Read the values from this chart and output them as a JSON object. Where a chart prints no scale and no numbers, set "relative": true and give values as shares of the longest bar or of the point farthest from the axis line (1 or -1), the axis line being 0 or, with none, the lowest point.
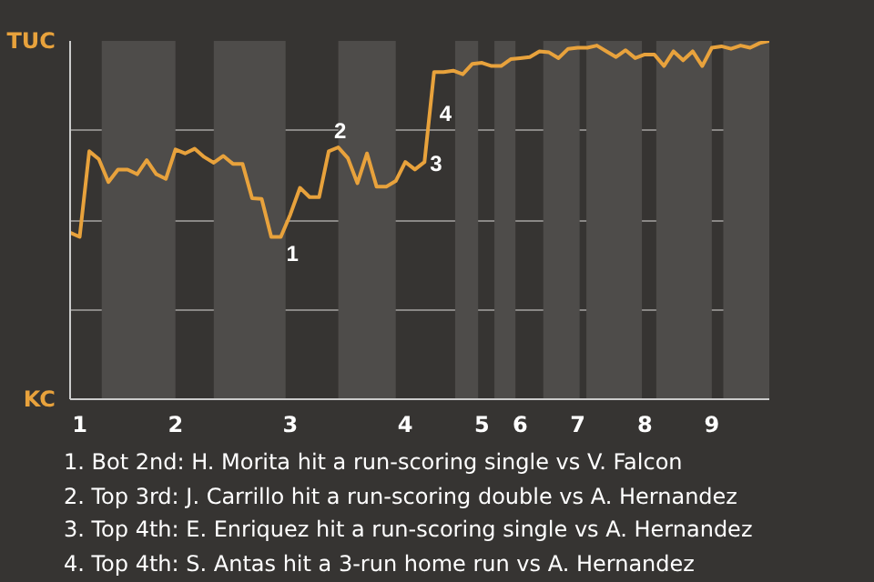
{
  "chart_data": {
    "type": "line",
    "relative": true,
    "grid": "y",
    "categories": [
      null,
      "1",
      null,
      null,
      null,
      null,
      null,
      null,
      null,
      null,
      null,
      "2",
      null,
      null,
      null,
      null,
      null,
      null,
      null,
      null,
      null,
      null,
      null,
      "3",
      null,
      null,
      null,
      null,
      null,
      null,
      null,
      null,
      null,
      null,
      null,
      "4",
      null,
      null,
      null,
      null,
      null,
      null,
      null,
      "5",
      null,
      null,
      null,
      "6",
      null,
      null,
      null,
      null,
      null,
      "7",
      null,
      null,
      null,
      null,
      null,
      null,
      "8",
      null,
      null,
      null,
      null,
      null,
      null,
      "9",
      null,
      null,
      null,
      null,
      null,
      null
    ],
    "series": [
      {
        "color": "#e8a23c",
        "values": [
          0.465,
          0.453,
          0.692,
          0.67,
          0.606,
          0.641,
          0.641,
          0.628,
          0.667,
          0.628,
          0.615,
          0.697,
          0.686,
          0.699,
          0.676,
          0.66,
          0.679,
          0.657,
          0.657,
          0.561,
          0.559,
          0.453,
          0.453,
          0.516,
          0.59,
          0.564,
          0.564,
          0.692,
          0.703,
          0.673,
          0.603,
          0.686,
          0.593,
          0.593,
          0.609,
          0.662,
          0.641,
          0.662,
          0.913,
          0.913,
          0.917,
          0.907,
          0.936,
          0.939,
          0.93,
          0.93,
          0.949,
          0.952,
          0.955,
          0.971,
          0.968,
          0.952,
          0.978,
          0.981,
          0.981,
          0.987,
          0.971,
          0.955,
          0.974,
          0.952,
          0.962,
          0.962,
          0.93,
          0.971,
          0.946,
          0.971,
          0.93,
          0.981,
          0.985,
          0.978,
          0.987,
          0.981,
          0.994,
          1.0
        ]
      }
    ],
    "annotations": [
      "TUC",
      "KC",
      "1",
      "2",
      "3",
      "4",
      "1. Bot 2nd: H. Morita hit a run-scoring single vs V. Falcon",
      "2. Top 3rd: J. Carrillo hit a run-scoring double vs A. Hernandez",
      "3. Top 4th: E. Enriquez hit a run-scoring single vs A. Hernandez",
      "4. Top 4th: S. Antas hit a 3-run home run vs A. Hernandez"
    ]
  }
}
